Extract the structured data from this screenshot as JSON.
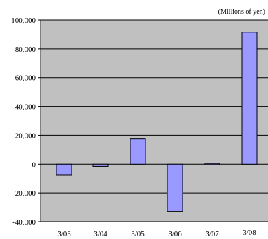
{
  "chart_data": {
    "type": "bar",
    "unit_label": "(Millions of yen)",
    "categories": [
      "3/03",
      "3/04",
      "3/05",
      "3/06",
      "3/07",
      "3/08"
    ],
    "values": [
      -7500,
      -1500,
      17500,
      -33000,
      500,
      91500
    ],
    "ylim": [
      -40000,
      100000
    ],
    "y_ticks": [
      100000,
      80000,
      60000,
      40000,
      20000,
      0,
      -20000,
      -40000
    ],
    "y_tick_labels": [
      "100,000",
      "80,000",
      "60,000",
      "40,000",
      "20,000",
      "0",
      "-20,000",
      "-40,000"
    ],
    "grid": true,
    "legend": "none",
    "colors": {
      "plot_background": "#c0c0c0",
      "bar_fill": "#9999ff",
      "bar_stroke": "#000000",
      "grid": "#000000"
    }
  }
}
